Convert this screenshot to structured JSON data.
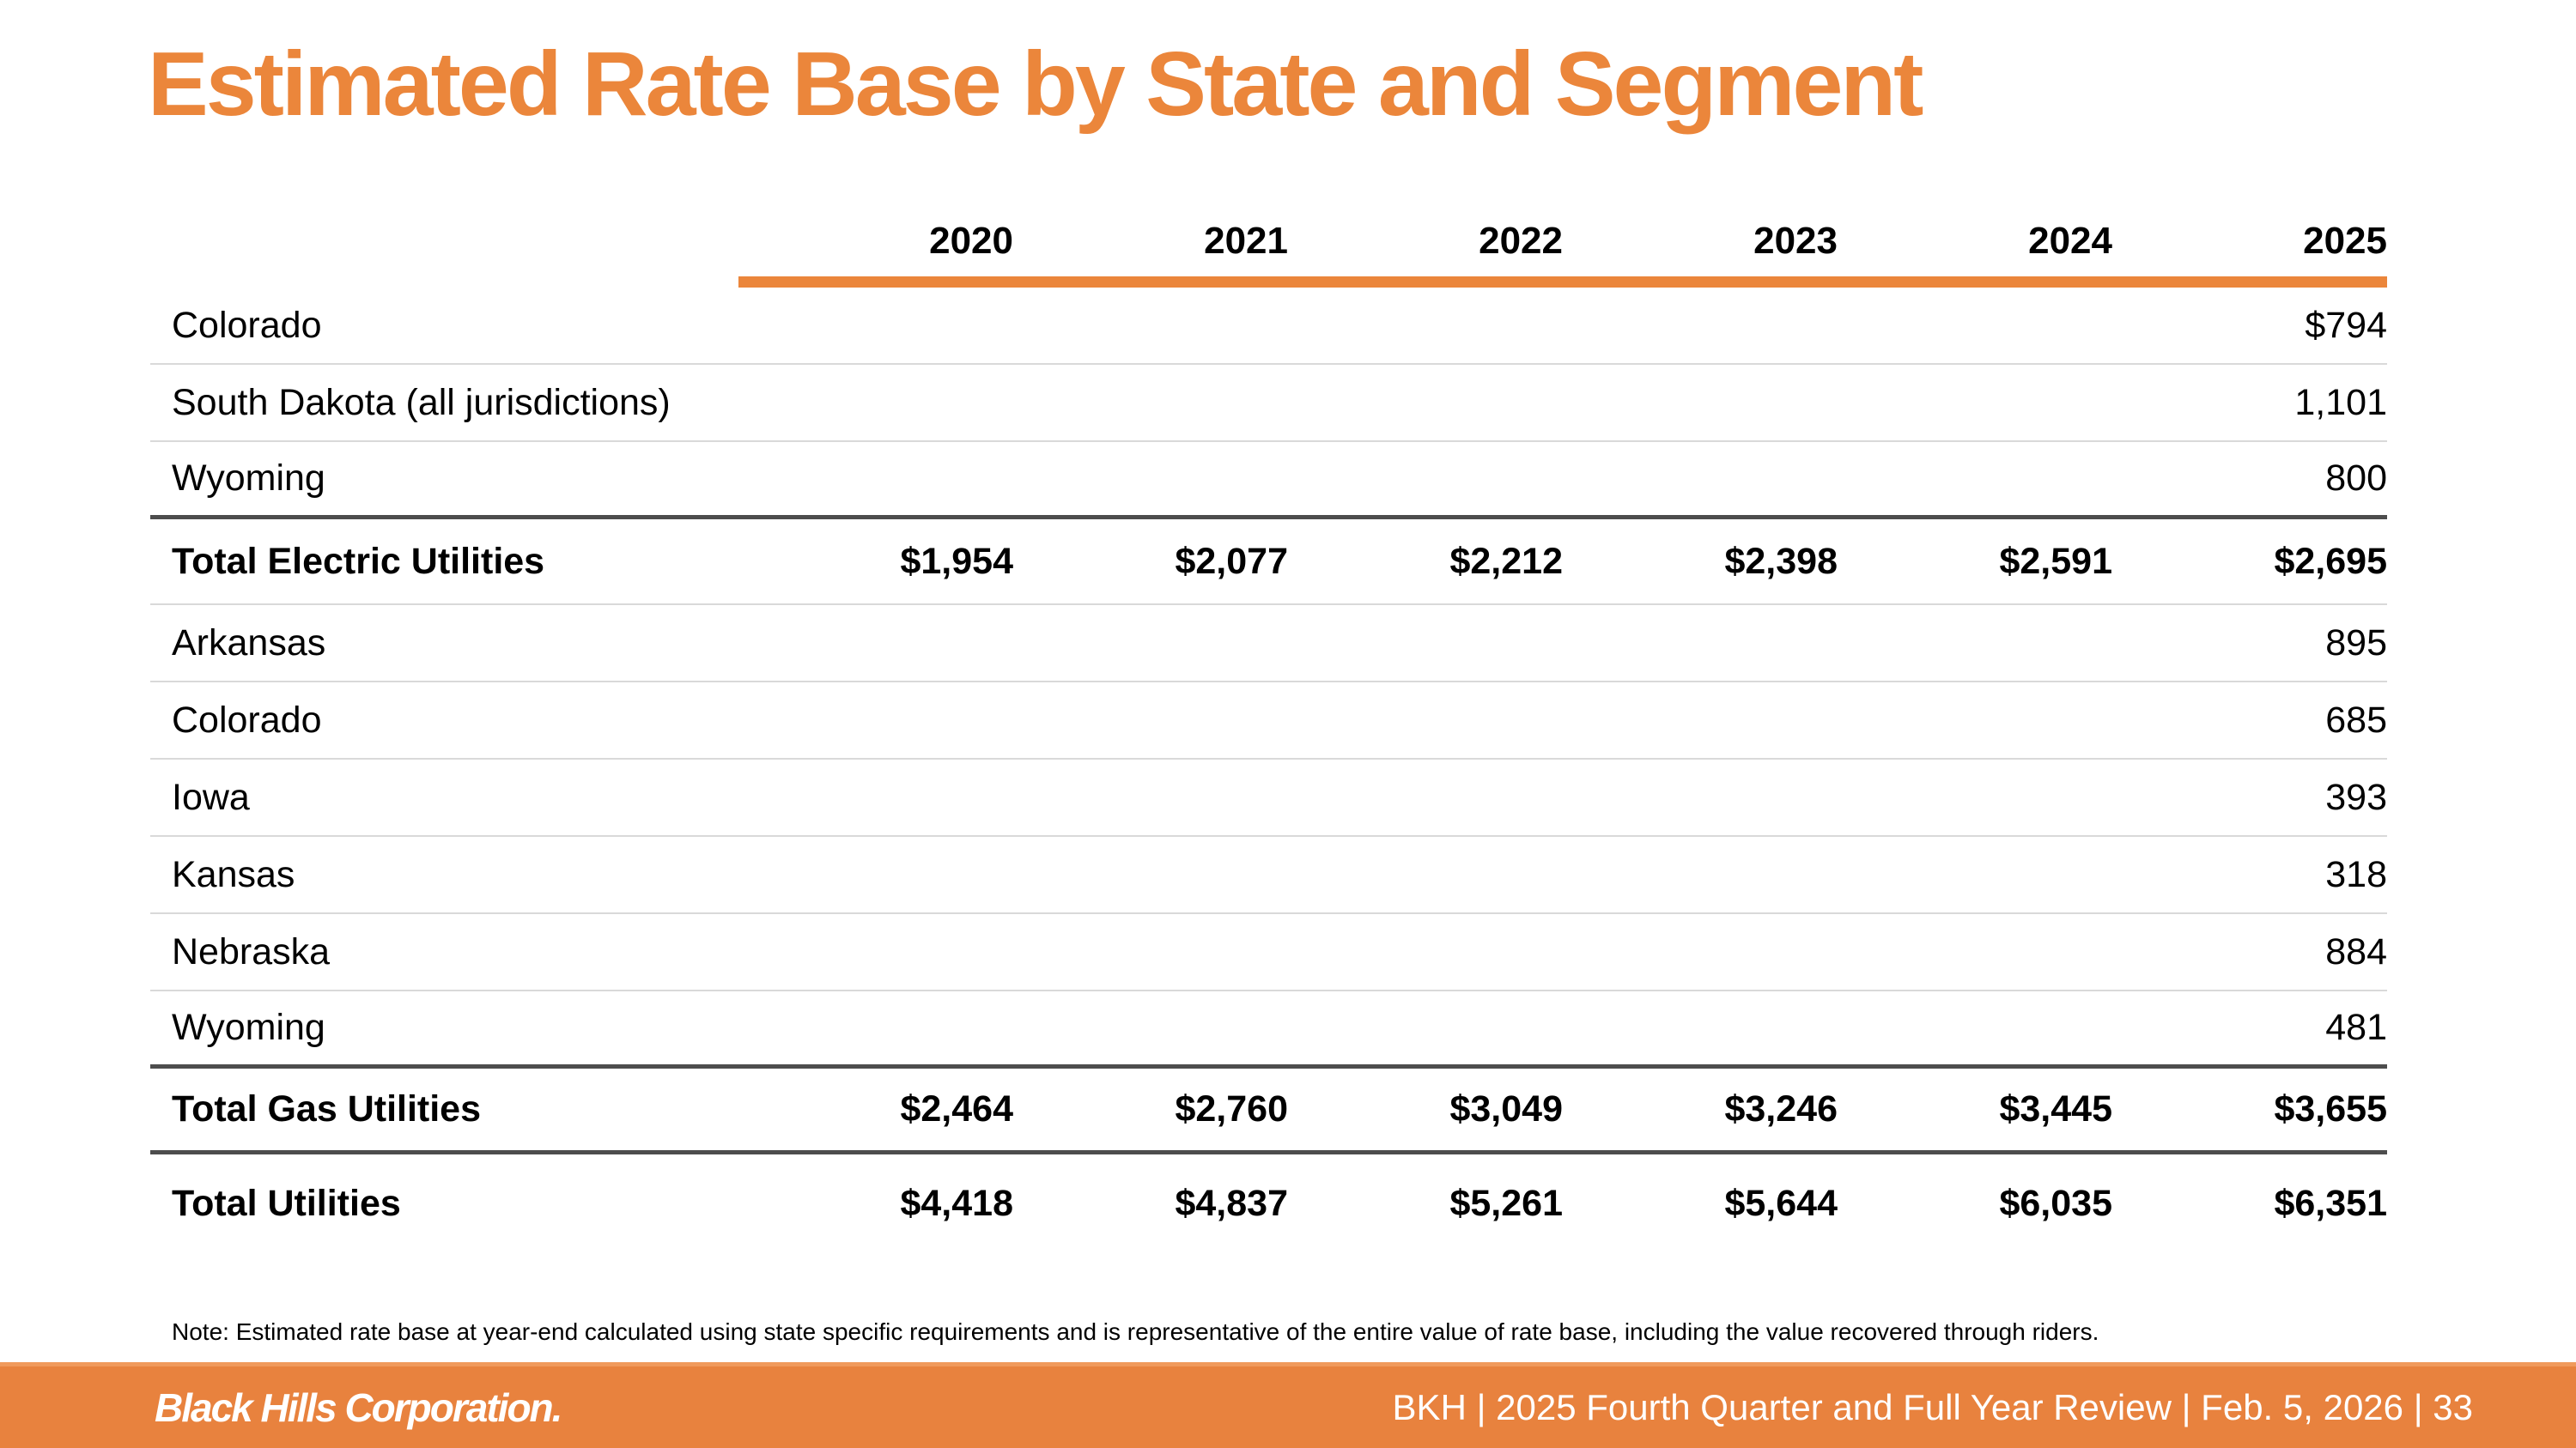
{
  "slide": {
    "title": "Estimated Rate Base by State and Segment"
  },
  "table": {
    "years": [
      "2020",
      "2021",
      "2022",
      "2023",
      "2024",
      "2025"
    ],
    "rows": [
      {
        "label": "Colorado",
        "style": "state",
        "divider": "light",
        "values": [
          "",
          "",
          "",
          "",
          "",
          "$794"
        ]
      },
      {
        "label": "South Dakota (all jurisdictions)",
        "style": "state",
        "divider": "light",
        "values": [
          "",
          "",
          "",
          "",
          "",
          "1,101"
        ]
      },
      {
        "label": "Wyoming",
        "style": "state",
        "divider": "dark",
        "values": [
          "",
          "",
          "",
          "",
          "",
          "800"
        ]
      },
      {
        "label": "Total Electric Utilities",
        "style": "total",
        "divider": "light",
        "values": [
          "$1,954",
          "$2,077",
          "$2,212",
          "$2,398",
          "$2,591",
          "$2,695"
        ]
      },
      {
        "label": "Arkansas",
        "style": "state",
        "divider": "light",
        "values": [
          "",
          "",
          "",
          "",
          "",
          "895"
        ]
      },
      {
        "label": "Colorado",
        "style": "state",
        "divider": "light",
        "values": [
          "",
          "",
          "",
          "",
          "",
          "685"
        ]
      },
      {
        "label": "Iowa",
        "style": "state",
        "divider": "light",
        "values": [
          "",
          "",
          "",
          "",
          "",
          "393"
        ]
      },
      {
        "label": "Kansas",
        "style": "state",
        "divider": "light",
        "values": [
          "",
          "",
          "",
          "",
          "",
          "318"
        ]
      },
      {
        "label": "Nebraska",
        "style": "state",
        "divider": "light",
        "values": [
          "",
          "",
          "",
          "",
          "",
          "884"
        ]
      },
      {
        "label": "Wyoming",
        "style": "state",
        "divider": "dark",
        "values": [
          "",
          "",
          "",
          "",
          "",
          "481"
        ]
      },
      {
        "label": "Total Gas Utilities",
        "style": "total",
        "divider": "dark",
        "values": [
          "$2,464",
          "$2,760",
          "$3,049",
          "$3,246",
          "$3,445",
          "$3,655"
        ]
      },
      {
        "label": "Total Utilities",
        "style": "grand",
        "divider": "none",
        "values": [
          "$4,418",
          "$4,837",
          "$5,261",
          "$5,644",
          "$6,035",
          "$6,351"
        ]
      }
    ]
  },
  "note": "Note: Estimated rate base at year-end calculated using state specific requirements and is representative of the entire value of rate base, including the value recovered through riders.",
  "footer": {
    "logo": "Black Hills Corporation.",
    "info": "BKH  |  2025 Fourth Quarter and Full Year Review  |  Feb. 5, 2026  |  33"
  },
  "colors": {
    "accent_orange": "#EB863B",
    "footer_orange": "#E8823E",
    "divider_light": "#D9D9D9",
    "divider_dark": "#4D4D4D"
  }
}
